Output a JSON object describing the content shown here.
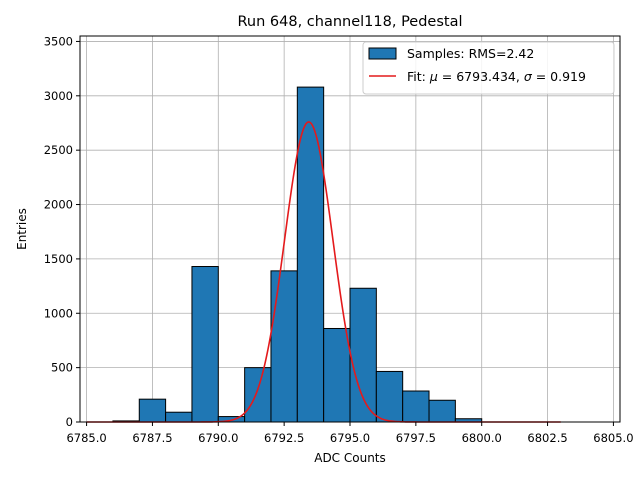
{
  "chart_data": {
    "type": "bar",
    "title": "Run 648, channel118, Pedestal",
    "xlabel": "ADC Counts",
    "ylabel": "Entries",
    "xlim": [
      6784.75,
      6805.25
    ],
    "ylim": [
      0,
      3550
    ],
    "grid": true,
    "legend_position": "top-right",
    "x_ticks": [
      "6785.0",
      "6787.5",
      "6790.0",
      "6792.5",
      "6795.0",
      "6797.5",
      "6800.0",
      "6802.5",
      "6805.0"
    ],
    "y_ticks": [
      "0",
      "500",
      "1000",
      "1500",
      "2000",
      "2500",
      "3000",
      "3500"
    ],
    "bin_edges": [
      6785,
      6786,
      6787,
      6788,
      6789,
      6790,
      6791,
      6792,
      6793,
      6794,
      6795,
      6796,
      6797,
      6798,
      6799,
      6800,
      6801,
      6802,
      6803,
      6804,
      6805
    ],
    "values": [
      0,
      10,
      210,
      90,
      1430,
      50,
      500,
      1390,
      3080,
      860,
      1230,
      465,
      285,
      200,
      30,
      0,
      0,
      0,
      0,
      0
    ],
    "series": [
      {
        "name": "Samples: RMS=2.42",
        "kind": "histogram",
        "color": "#1f77b4",
        "edgecolor": "#000000"
      },
      {
        "name": "Fit: μ = 6793.434, σ = 0.919",
        "kind": "gaussian_fit",
        "color": "#e41a1c",
        "mu": 6793.434,
        "sigma": 0.919,
        "amplitude": 2760,
        "x_range": [
          6785,
          6803
        ]
      }
    ],
    "legend": {
      "hist_label": "Samples: RMS=2.42",
      "fit_label_prefix": "Fit: ",
      "mu_symbol": "μ",
      "mu_value": " = 6793.434, ",
      "sigma_symbol": "σ",
      "sigma_value": " = 0.919"
    }
  }
}
